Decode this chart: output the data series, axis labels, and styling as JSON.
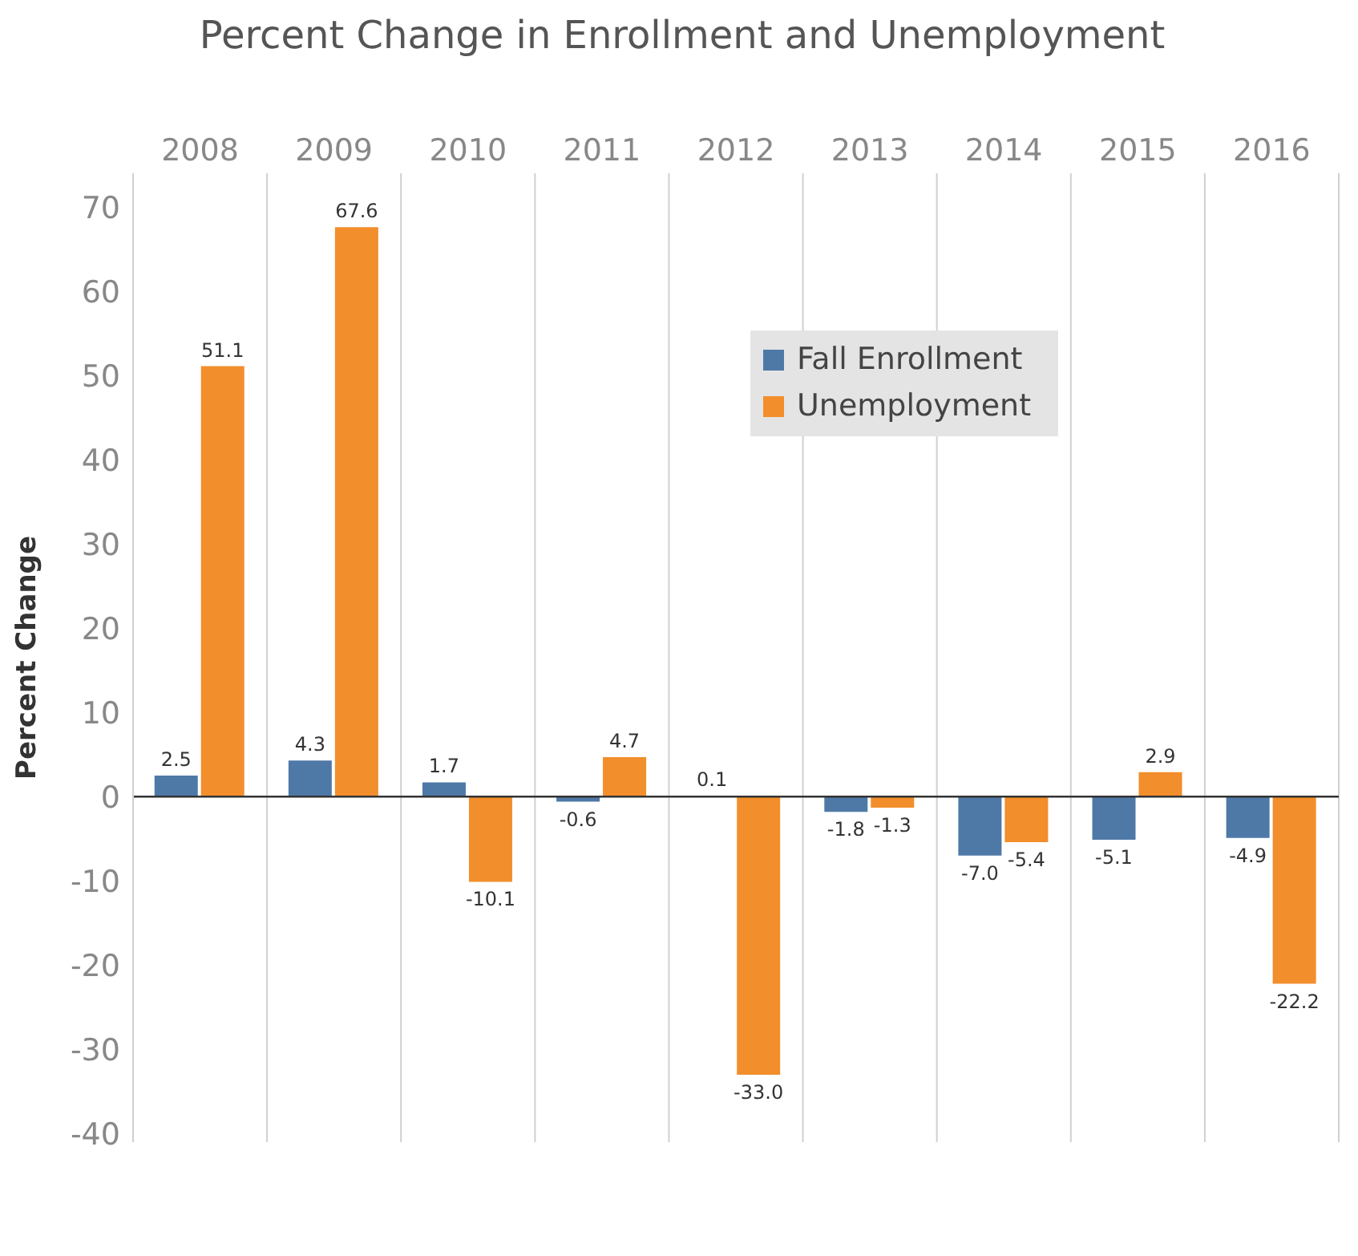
{
  "chart_data": {
    "type": "bar",
    "title": "Percent Change in Enrollment and Unemployment",
    "ylabel": "Percent Change",
    "categories": [
      "2008",
      "2009",
      "2010",
      "2011",
      "2012",
      "2013",
      "2014",
      "2015",
      "2016"
    ],
    "series": [
      {
        "name": "Fall Enrollment",
        "color": "#4e79a7",
        "values": [
          2.5,
          4.3,
          1.7,
          -0.6,
          0.1,
          -1.8,
          -7.0,
          -5.1,
          -4.9
        ],
        "value_labels": [
          "2.5",
          "4.3",
          "1.7",
          "-0.6",
          "0.1",
          "-1.8",
          "-7.0",
          "-5.1",
          "-4.9"
        ]
      },
      {
        "name": "Unemployment",
        "color": "#f28e2b",
        "values": [
          51.1,
          67.6,
          -10.1,
          4.7,
          -33.0,
          -1.3,
          -5.4,
          2.9,
          -22.2
        ],
        "value_labels": [
          "51.1",
          "67.6",
          "-10.1",
          "4.7",
          "-33.0",
          "-1.3",
          "-5.4",
          "2.9",
          "-22.2"
        ]
      }
    ],
    "ylim": [
      -41,
      74
    ],
    "yticks": [
      -40,
      -30,
      -20,
      -10,
      0,
      10,
      20,
      30,
      40,
      50,
      60,
      70
    ],
    "grid": "x",
    "legend": "top right",
    "ref_lines": [
      {
        "axis": "y",
        "value": 0,
        "color": "#333333"
      }
    ]
  }
}
